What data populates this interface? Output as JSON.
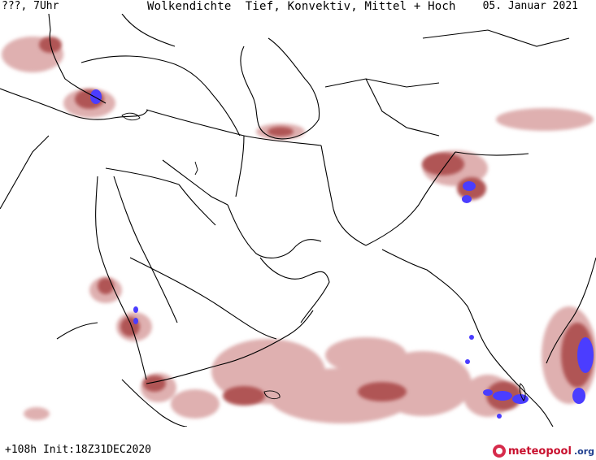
{
  "header": {
    "left": "???, 7Uhr",
    "title": "Wolkendichte  Tief, Konvektiv, Mittel + Hoch",
    "date": "05. Januar 2021"
  },
  "footer": {
    "left": "+108h Init:18Z31DEC2020",
    "logo_main": "meteopool",
    "logo_suffix": ".org"
  },
  "map": {
    "region": "Middle East / Arabian Peninsula / South Asia",
    "colors": {
      "background": "#ffffff",
      "borders": "#000000",
      "cloud_low": "#d9a7a7",
      "cloud_mid": "#b35a5a",
      "cloud_high": "#7a2a2a",
      "convective": "#4a3dff"
    }
  }
}
